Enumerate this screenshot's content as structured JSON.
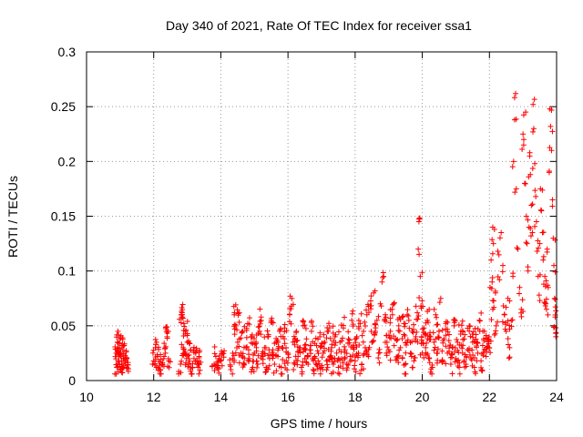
{
  "chart_data": {
    "type": "scatter",
    "title": "Day 340 of 2021, Rate Of TEC Index for receiver ssa1",
    "xlabel": "GPS time / hours",
    "ylabel": "ROTI / TECUs",
    "xlim": [
      10,
      24
    ],
    "ylim": [
      0,
      0.3
    ],
    "xticks": [
      10,
      12,
      14,
      16,
      18,
      20,
      22,
      24
    ],
    "xtick_labels": [
      "10",
      "12",
      "14",
      "16",
      "18",
      "20",
      "22",
      "24"
    ],
    "yticks": [
      0,
      0.05,
      0.1,
      0.15,
      0.2,
      0.25,
      0.3
    ],
    "ytick_labels": [
      "0",
      "0.05",
      "0.1",
      "0.15",
      "0.2",
      "0.25",
      "0.3"
    ],
    "grid": true,
    "marker": "+",
    "color": "#ff0000",
    "series": [
      {
        "name": "ROTI",
        "points": [
          [
            10.9,
            0.012
          ],
          [
            10.9,
            0.025
          ],
          [
            10.92,
            0.035
          ],
          [
            10.95,
            0.018
          ],
          [
            10.98,
            0.03
          ],
          [
            11.0,
            0.038
          ],
          [
            11.02,
            0.022
          ],
          [
            11.05,
            0.015
          ],
          [
            11.08,
            0.028
          ],
          [
            11.1,
            0.02
          ],
          [
            11.12,
            0.032
          ],
          [
            11.15,
            0.016
          ],
          [
            11.18,
            0.026
          ],
          [
            11.2,
            0.012
          ],
          [
            10.94,
            0.008
          ],
          [
            11.06,
            0.01
          ],
          [
            12.0,
            0.018
          ],
          [
            12.05,
            0.03
          ],
          [
            12.08,
            0.012
          ],
          [
            12.12,
            0.022
          ],
          [
            12.2,
            0.01
          ],
          [
            12.25,
            0.015
          ],
          [
            12.3,
            0.02
          ],
          [
            12.35,
            0.025
          ],
          [
            12.4,
            0.04
          ],
          [
            12.42,
            0.045
          ],
          [
            12.45,
            0.018
          ],
          [
            12.8,
            0.015
          ],
          [
            12.82,
            0.06
          ],
          [
            12.85,
            0.058
          ],
          [
            12.88,
            0.03
          ],
          [
            12.9,
            0.052
          ],
          [
            12.92,
            0.025
          ],
          [
            12.95,
            0.045
          ],
          [
            12.98,
            0.02
          ],
          [
            13.0,
            0.035
          ],
          [
            13.05,
            0.015
          ],
          [
            13.1,
            0.028
          ],
          [
            13.15,
            0.012
          ],
          [
            13.2,
            0.02
          ],
          [
            13.25,
            0.025
          ],
          [
            13.3,
            0.018
          ],
          [
            13.32,
            0.012
          ],
          [
            13.35,
            0.022
          ],
          [
            13.8,
            0.015
          ],
          [
            13.85,
            0.022
          ],
          [
            13.9,
            0.012
          ],
          [
            13.95,
            0.02
          ],
          [
            14.0,
            0.018
          ],
          [
            14.05,
            0.025
          ],
          [
            14.3,
            0.01
          ],
          [
            14.35,
            0.02
          ],
          [
            14.4,
            0.06
          ],
          [
            14.45,
            0.05
          ],
          [
            14.5,
            0.035
          ],
          [
            14.55,
            0.062
          ],
          [
            14.6,
            0.025
          ],
          [
            14.65,
            0.045
          ],
          [
            14.7,
            0.015
          ],
          [
            14.75,
            0.03
          ],
          [
            14.8,
            0.052
          ],
          [
            14.85,
            0.02
          ],
          [
            14.9,
            0.04
          ],
          [
            14.95,
            0.012
          ],
          [
            15.0,
            0.025
          ],
          [
            15.05,
            0.035
          ],
          [
            15.1,
            0.015
          ],
          [
            15.15,
            0.045
          ],
          [
            15.2,
            0.058
          ],
          [
            15.25,
            0.022
          ],
          [
            15.3,
            0.03
          ],
          [
            15.35,
            0.012
          ],
          [
            15.4,
            0.04
          ],
          [
            15.45,
            0.02
          ],
          [
            15.5,
            0.055
          ],
          [
            15.55,
            0.028
          ],
          [
            15.6,
            0.015
          ],
          [
            15.65,
            0.035
          ],
          [
            15.7,
            0.022
          ],
          [
            15.75,
            0.045
          ],
          [
            15.8,
            0.012
          ],
          [
            15.85,
            0.03
          ],
          [
            15.9,
            0.048
          ],
          [
            15.95,
            0.018
          ],
          [
            16.0,
            0.025
          ],
          [
            16.05,
            0.06
          ],
          [
            16.1,
            0.068
          ],
          [
            16.15,
            0.035
          ],
          [
            16.2,
            0.015
          ],
          [
            16.25,
            0.045
          ],
          [
            16.3,
            0.022
          ],
          [
            16.35,
            0.03
          ],
          [
            16.4,
            0.012
          ],
          [
            16.45,
            0.05
          ],
          [
            16.5,
            0.02
          ],
          [
            16.55,
            0.038
          ],
          [
            16.6,
            0.015
          ],
          [
            16.65,
            0.028
          ],
          [
            16.7,
            0.045
          ],
          [
            16.75,
            0.01
          ],
          [
            16.8,
            0.022
          ],
          [
            16.85,
            0.032
          ],
          [
            16.9,
            0.018
          ],
          [
            16.95,
            0.04
          ],
          [
            17.0,
            0.012
          ],
          [
            17.05,
            0.025
          ],
          [
            17.1,
            0.035
          ],
          [
            17.15,
            0.018
          ],
          [
            17.2,
            0.045
          ],
          [
            17.25,
            0.022
          ],
          [
            17.3,
            0.03
          ],
          [
            17.35,
            0.015
          ],
          [
            17.4,
            0.04
          ],
          [
            17.45,
            0.025
          ],
          [
            17.5,
            0.012
          ],
          [
            17.55,
            0.035
          ],
          [
            17.6,
            0.02
          ],
          [
            17.65,
            0.048
          ],
          [
            17.7,
            0.028
          ],
          [
            17.75,
            0.015
          ],
          [
            17.8,
            0.038
          ],
          [
            17.85,
            0.022
          ],
          [
            17.9,
            0.055
          ],
          [
            17.95,
            0.03
          ],
          [
            18.0,
            0.018
          ],
          [
            18.05,
            0.04
          ],
          [
            18.1,
            0.025
          ],
          [
            18.15,
            0.052
          ],
          [
            18.2,
            0.015
          ],
          [
            18.25,
            0.045
          ],
          [
            18.3,
            0.03
          ],
          [
            18.35,
            0.06
          ],
          [
            18.4,
            0.022
          ],
          [
            18.45,
            0.068
          ],
          [
            18.5,
            0.035
          ],
          [
            18.55,
            0.08
          ],
          [
            18.6,
            0.045
          ],
          [
            18.65,
            0.055
          ],
          [
            18.7,
            0.025
          ],
          [
            18.75,
            0.07
          ],
          [
            18.8,
            0.09
          ],
          [
            18.85,
            0.095
          ],
          [
            18.9,
            0.06
          ],
          [
            18.95,
            0.035
          ],
          [
            19.0,
            0.028
          ],
          [
            19.05,
            0.045
          ],
          [
            19.1,
            0.065
          ],
          [
            19.15,
            0.07
          ],
          [
            19.2,
            0.038
          ],
          [
            19.25,
            0.02
          ],
          [
            19.3,
            0.05
          ],
          [
            19.35,
            0.03
          ],
          [
            19.4,
            0.058
          ],
          [
            19.45,
            0.042
          ],
          [
            19.5,
            0.015
          ],
          [
            19.55,
            0.035
          ],
          [
            19.6,
            0.055
          ],
          [
            19.65,
            0.025
          ],
          [
            19.7,
            0.045
          ],
          [
            19.75,
            0.018
          ],
          [
            19.8,
            0.038
          ],
          [
            19.85,
            0.062
          ],
          [
            19.88,
            0.12
          ],
          [
            19.9,
            0.145
          ],
          [
            19.92,
            0.148
          ],
          [
            19.94,
            0.095
          ],
          [
            19.96,
            0.068
          ],
          [
            19.98,
            0.04
          ],
          [
            20.0,
            0.025
          ],
          [
            20.05,
            0.048
          ],
          [
            20.1,
            0.03
          ],
          [
            20.15,
            0.055
          ],
          [
            20.2,
            0.02
          ],
          [
            20.25,
            0.04
          ],
          [
            20.3,
            0.012
          ],
          [
            20.35,
            0.035
          ],
          [
            20.4,
            0.06
          ],
          [
            20.45,
            0.025
          ],
          [
            20.5,
            0.045
          ],
          [
            20.55,
            0.075
          ],
          [
            20.6,
            0.018
          ],
          [
            20.65,
            0.038
          ],
          [
            20.7,
            0.052
          ],
          [
            20.75,
            0.025
          ],
          [
            20.8,
            0.042
          ],
          [
            20.85,
            0.015
          ],
          [
            20.9,
            0.03
          ],
          [
            20.95,
            0.05
          ],
          [
            21.0,
            0.02
          ],
          [
            21.05,
            0.035
          ],
          [
            21.1,
            0.012
          ],
          [
            21.15,
            0.045
          ],
          [
            21.2,
            0.025
          ],
          [
            21.25,
            0.038
          ],
          [
            21.3,
            0.015
          ],
          [
            21.35,
            0.028
          ],
          [
            21.4,
            0.05
          ],
          [
            21.45,
            0.02
          ],
          [
            21.5,
            0.035
          ],
          [
            21.55,
            0.012
          ],
          [
            21.6,
            0.042
          ],
          [
            21.65,
            0.025
          ],
          [
            21.7,
            0.055
          ],
          [
            21.75,
            0.018
          ],
          [
            21.8,
            0.032
          ],
          [
            21.85,
            0.045
          ],
          [
            21.9,
            0.022
          ],
          [
            21.95,
            0.038
          ],
          [
            22.0,
            0.03
          ],
          [
            22.02,
            0.085
          ],
          [
            22.05,
            0.11
          ],
          [
            22.08,
            0.09
          ],
          [
            22.1,
            0.065
          ],
          [
            22.12,
            0.125
          ],
          [
            22.15,
            0.138
          ],
          [
            22.18,
            0.08
          ],
          [
            22.2,
            0.05
          ],
          [
            22.25,
            0.118
          ],
          [
            22.3,
            0.092
          ],
          [
            22.35,
            0.135
          ],
          [
            22.4,
            0.105
          ],
          [
            22.45,
            0.06
          ],
          [
            22.5,
            0.045
          ],
          [
            22.55,
            0.075
          ],
          [
            22.6,
            0.03
          ],
          [
            22.65,
            0.055
          ],
          [
            22.7,
            0.095
          ],
          [
            22.72,
            0.2
          ],
          [
            22.75,
            0.238
          ],
          [
            22.78,
            0.262
          ],
          [
            22.8,
            0.175
          ],
          [
            22.85,
            0.12
          ],
          [
            22.9,
            0.085
          ],
          [
            22.95,
            0.065
          ],
          [
            23.0,
            0.225
          ],
          [
            23.02,
            0.215
          ],
          [
            23.05,
            0.18
          ],
          [
            23.08,
            0.245
          ],
          [
            23.1,
            0.15
          ],
          [
            23.12,
            0.125
          ],
          [
            23.15,
            0.1
          ],
          [
            23.18,
            0.14
          ],
          [
            23.2,
            0.205
          ],
          [
            23.22,
            0.188
          ],
          [
            23.25,
            0.16
          ],
          [
            23.28,
            0.135
          ],
          [
            23.3,
            0.252
          ],
          [
            23.32,
            0.23
          ],
          [
            23.35,
            0.198
          ],
          [
            23.38,
            0.168
          ],
          [
            23.4,
            0.145
          ],
          [
            23.42,
            0.118
          ],
          [
            23.45,
            0.095
          ],
          [
            23.48,
            0.078
          ],
          [
            23.5,
            0.125
          ],
          [
            23.52,
            0.175
          ],
          [
            23.55,
            0.155
          ],
          [
            23.58,
            0.135
          ],
          [
            23.6,
            0.11
          ],
          [
            23.62,
            0.088
          ],
          [
            23.65,
            0.095
          ],
          [
            23.68,
            0.07
          ],
          [
            23.7,
            0.065
          ],
          [
            23.72,
            0.12
          ],
          [
            23.75,
            0.085
          ],
          [
            23.78,
            0.19
          ],
          [
            23.8,
            0.248
          ],
          [
            23.82,
            0.232
          ],
          [
            23.85,
            0.21
          ],
          [
            23.88,
            0.165
          ],
          [
            23.9,
            0.13
          ],
          [
            23.92,
            0.105
          ],
          [
            23.94,
            0.075
          ],
          [
            23.96,
            0.058
          ],
          [
            23.98,
            0.04
          ]
        ]
      }
    ]
  }
}
